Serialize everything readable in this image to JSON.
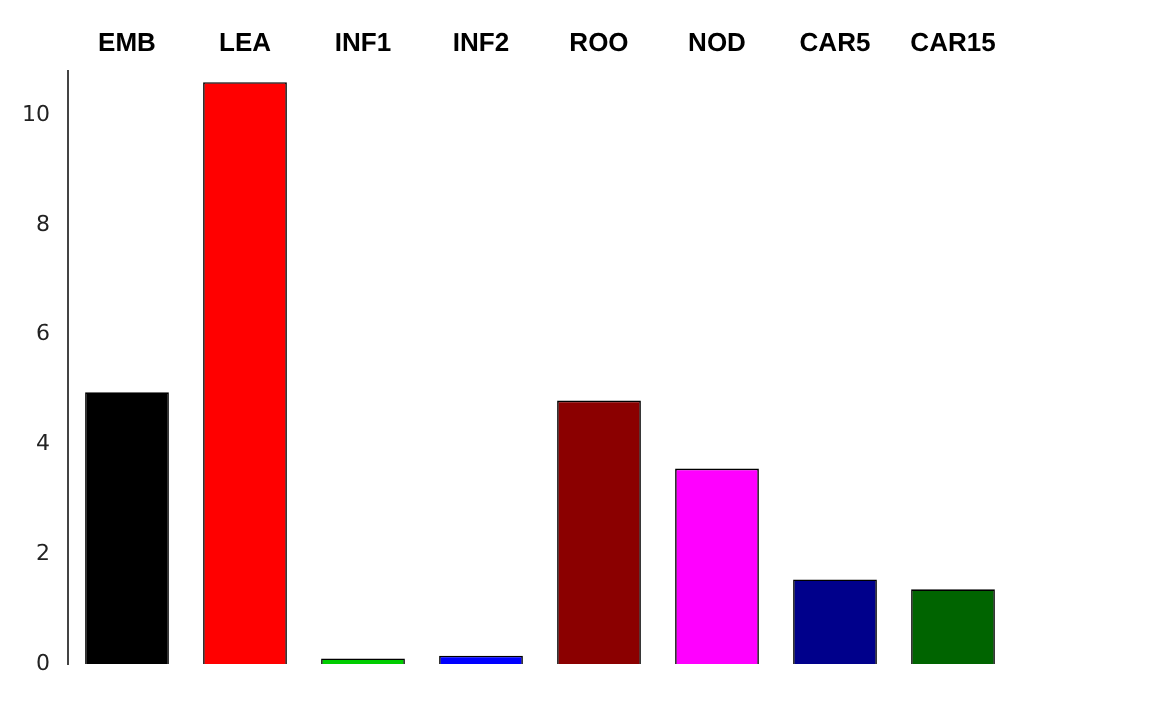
{
  "chart_data": {
    "type": "bar",
    "categories": [
      "EMB",
      "LEA",
      "INF1",
      "INF2",
      "ROO",
      "NOD",
      "CAR5",
      "CAR15"
    ],
    "values": [
      4.95,
      10.6,
      0.1,
      0.15,
      4.8,
      3.56,
      1.54,
      1.36
    ],
    "colors": [
      "#000000",
      "#ff0000",
      "#00cd00",
      "#0000ff",
      "#8b0000",
      "#ff00ff",
      "#00008b",
      "#006400"
    ],
    "ylim": [
      0,
      10.8
    ],
    "yticks": [
      0,
      2,
      4,
      6,
      8,
      10
    ],
    "grid": false,
    "legend": false
  }
}
